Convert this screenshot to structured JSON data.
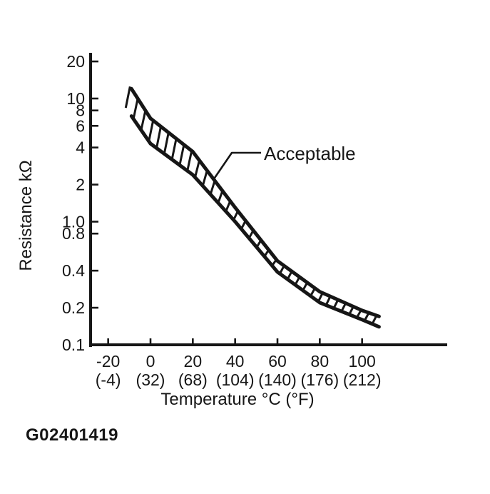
{
  "figure_code": "G02401419",
  "chart_data": {
    "type": "area",
    "subtype": "hatched-tolerance-band",
    "title": "",
    "xlabel": "Temperature °C (°F)",
    "ylabel": "Resistance kΩ",
    "y_scale": "log",
    "ylim": [
      0.1,
      20
    ],
    "xlim": [
      -20,
      100
    ],
    "grid": false,
    "legend_position": "none",
    "ink_color": "#161616",
    "background_color": "#ffffff",
    "y_ticks": [
      {
        "v": 20,
        "label": "20"
      },
      {
        "v": 10,
        "label": "10"
      },
      {
        "v": 8,
        "label": "8"
      },
      {
        "v": 6,
        "label": "6"
      },
      {
        "v": 4,
        "label": "4"
      },
      {
        "v": 2,
        "label": "2"
      },
      {
        "v": 1,
        "label": "1.0"
      },
      {
        "v": 0.8,
        "label": "0.8"
      },
      {
        "v": 0.4,
        "label": "0.4"
      },
      {
        "v": 0.2,
        "label": "0.2"
      },
      {
        "v": 0.1,
        "label": "0.1"
      }
    ],
    "x_ticks": [
      {
        "c": -20,
        "label": "-20",
        "f_label": "(-4)"
      },
      {
        "c": 0,
        "label": "0",
        "f_label": "(32)"
      },
      {
        "c": 20,
        "label": "20",
        "f_label": "(68)"
      },
      {
        "c": 40,
        "label": "40",
        "f_label": "(104)"
      },
      {
        "c": 60,
        "label": "60",
        "f_label": "(140)"
      },
      {
        "c": 80,
        "label": "80",
        "f_label": "(176)"
      },
      {
        "c": 100,
        "label": "100",
        "f_label": "(212)"
      }
    ],
    "annotation": {
      "text": "Acceptable",
      "points_to": "hatched-band"
    },
    "series": [
      {
        "name": "acceptable-upper-limit-kohm",
        "x": [
          -9,
          0,
          20,
          40,
          60,
          80,
          100,
          108
        ],
        "values": [
          12,
          6.9,
          3.7,
          1.3,
          0.48,
          0.27,
          0.19,
          0.17
        ]
      },
      {
        "name": "acceptable-lower-limit-kohm",
        "x": [
          -9,
          0,
          20,
          40,
          60,
          80,
          100,
          108
        ],
        "values": [
          7.2,
          4.3,
          2.4,
          1.0,
          0.39,
          0.22,
          0.16,
          0.14
        ]
      }
    ]
  }
}
